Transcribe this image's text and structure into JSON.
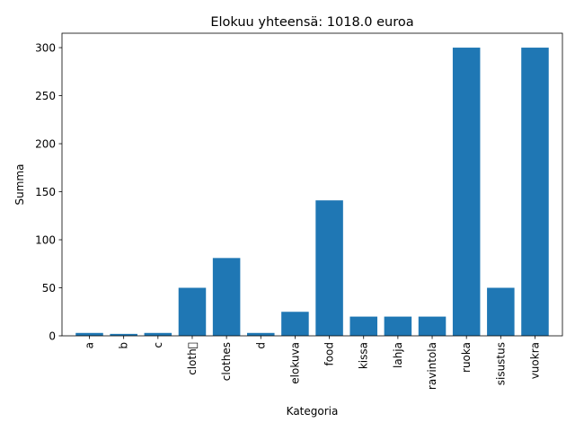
{
  "chart_data": {
    "type": "bar",
    "title": "Elokuu yhteensä: 1018.0 euroa",
    "xlabel": "Kategoria",
    "ylabel": "Summa",
    "categories": [
      "a",
      "b",
      "c",
      "cloth\u0000",
      "clothes",
      "d",
      "elokuva",
      "food",
      "kissa",
      "lahja",
      "ravintola",
      "ruoka",
      "sisustus",
      "vuokra"
    ],
    "values": [
      3,
      2,
      3,
      50,
      81,
      3,
      25,
      141,
      20,
      20,
      20,
      300,
      50,
      300
    ],
    "ylim": [
      0,
      315
    ],
    "yticks": [
      0,
      50,
      100,
      150,
      200,
      250,
      300
    ],
    "bar_color": "#1f77b4",
    "grid": false,
    "legend": "none"
  }
}
